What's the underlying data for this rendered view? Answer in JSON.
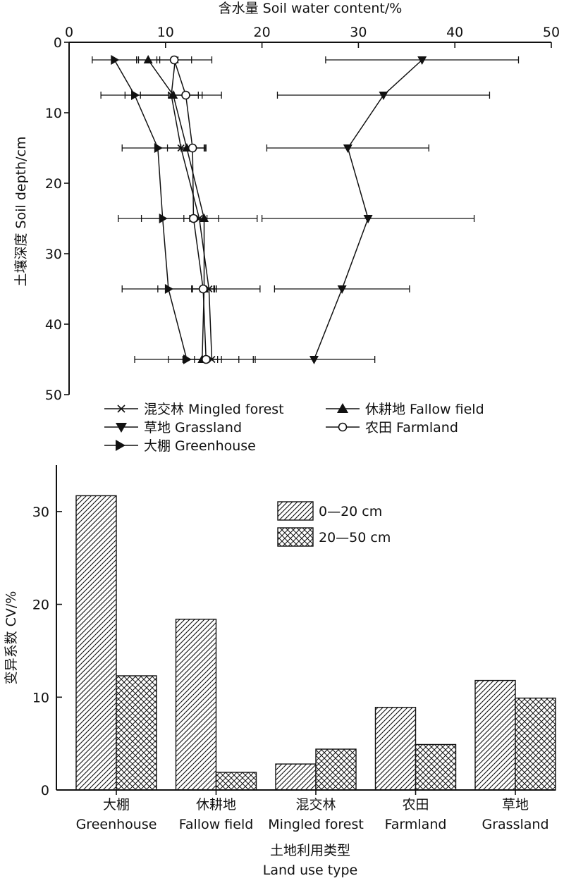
{
  "chart_data": [
    {
      "type": "line",
      "title": "",
      "xlabel": "含水量 Soil water content/%",
      "ylabel": "土壤深度 Soil depth/cm",
      "xaxis_position": "top",
      "y_inverted": true,
      "xlim": [
        0,
        50
      ],
      "ylim": [
        0,
        50
      ],
      "xticks": [
        0,
        10,
        20,
        30,
        40,
        50
      ],
      "yticks": [
        0,
        10,
        20,
        30,
        40,
        50
      ],
      "xtick_labels": [
        "0",
        "10",
        "20",
        "30",
        "40",
        "50"
      ],
      "ytick_labels": [
        "0",
        "10",
        "20",
        "30",
        "40",
        "50"
      ],
      "grid": false,
      "legend_position": "bottom",
      "series": [
        {
          "name": "混交林 Mingled forest",
          "marker": "x",
          "points": [
            {
              "x": 11.0,
              "y": 2.5,
              "err": 3.8
            },
            {
              "x": 10.6,
              "y": 7.5,
              "err": 3.2
            },
            {
              "x": 11.6,
              "y": 15,
              "err": 2.5
            },
            {
              "x": 13.5,
              "y": 25,
              "err": 6.0
            },
            {
              "x": 14.5,
              "y": 35,
              "err": 5.3
            },
            {
              "x": 14.8,
              "y": 45,
              "err": 4.5
            }
          ]
        },
        {
          "name": "休耕地 Fallow field",
          "marker": "triangle-up",
          "points": [
            {
              "x": 8.2,
              "y": 2.5,
              "err": 1.2
            },
            {
              "x": 10.8,
              "y": 7.5,
              "err": 5.0
            },
            {
              "x": 12.2,
              "y": 15,
              "err": 2.0
            },
            {
              "x": 14.0,
              "y": 25,
              "err": 1.5
            },
            {
              "x": 14.0,
              "y": 35,
              "err": 1.3
            },
            {
              "x": 13.8,
              "y": 45,
              "err": 2.0
            }
          ]
        },
        {
          "name": "草地 Grassland",
          "marker": "triangle-down",
          "points": [
            {
              "x": 36.6,
              "y": 2.5,
              "err": 10.0
            },
            {
              "x": 32.6,
              "y": 7.5,
              "err": 11.0
            },
            {
              "x": 28.9,
              "y": 15,
              "err": 8.4
            },
            {
              "x": 31.0,
              "y": 25,
              "err": 11.0
            },
            {
              "x": 28.3,
              "y": 35,
              "err": 7.0
            },
            {
              "x": 25.4,
              "y": 45,
              "err": 6.3
            }
          ]
        },
        {
          "name": "农田 Farmland",
          "marker": "circle-open",
          "points": [
            {
              "x": 10.9,
              "y": 2.5,
              "err": 1.8
            },
            {
              "x": 12.1,
              "y": 7.5,
              "err": 1.3
            },
            {
              "x": 12.8,
              "y": 15,
              "err": 1.2
            },
            {
              "x": 12.9,
              "y": 25,
              "err": 1.0
            },
            {
              "x": 13.9,
              "y": 35,
              "err": 1.1
            },
            {
              "x": 14.2,
              "y": 45,
              "err": 1.2
            }
          ]
        },
        {
          "name": "大棚 Greenhouse",
          "marker": "triangle-right",
          "points": [
            {
              "x": 4.7,
              "y": 2.5,
              "err": 2.3
            },
            {
              "x": 6.8,
              "y": 7.5,
              "err": 3.5
            },
            {
              "x": 9.2,
              "y": 15,
              "err": 3.7
            },
            {
              "x": 9.7,
              "y": 25,
              "err": 4.6
            },
            {
              "x": 10.3,
              "y": 35,
              "err": 4.8
            },
            {
              "x": 12.2,
              "y": 45,
              "err": 5.4
            }
          ]
        }
      ]
    },
    {
      "type": "bar",
      "title": "",
      "xlabel": "土地利用类型",
      "xlabel_en": "Land use type",
      "ylabel": "变异系数 CV/%",
      "ylim": [
        0,
        35
      ],
      "yticks": [
        0,
        10,
        20,
        30
      ],
      "ytick_labels": [
        "0",
        "10",
        "20",
        "30"
      ],
      "grid": false,
      "legend_position": "top-right",
      "categories": [
        {
          "cn": "大棚",
          "en": "Greenhouse"
        },
        {
          "cn": "休耕地",
          "en": "Fallow field"
        },
        {
          "cn": "混交林",
          "en": "Mingled forest"
        },
        {
          "cn": "农田",
          "en": "Farmland"
        },
        {
          "cn": "草地",
          "en": "Grassland"
        }
      ],
      "series": [
        {
          "name": "0—20 cm",
          "pattern": "diagonal-hatch",
          "values": [
            31.7,
            18.4,
            2.8,
            8.9,
            11.8
          ]
        },
        {
          "name": "20—50 cm",
          "pattern": "crosshatch",
          "values": [
            12.3,
            1.9,
            4.4,
            4.9,
            9.9
          ]
        }
      ]
    }
  ]
}
